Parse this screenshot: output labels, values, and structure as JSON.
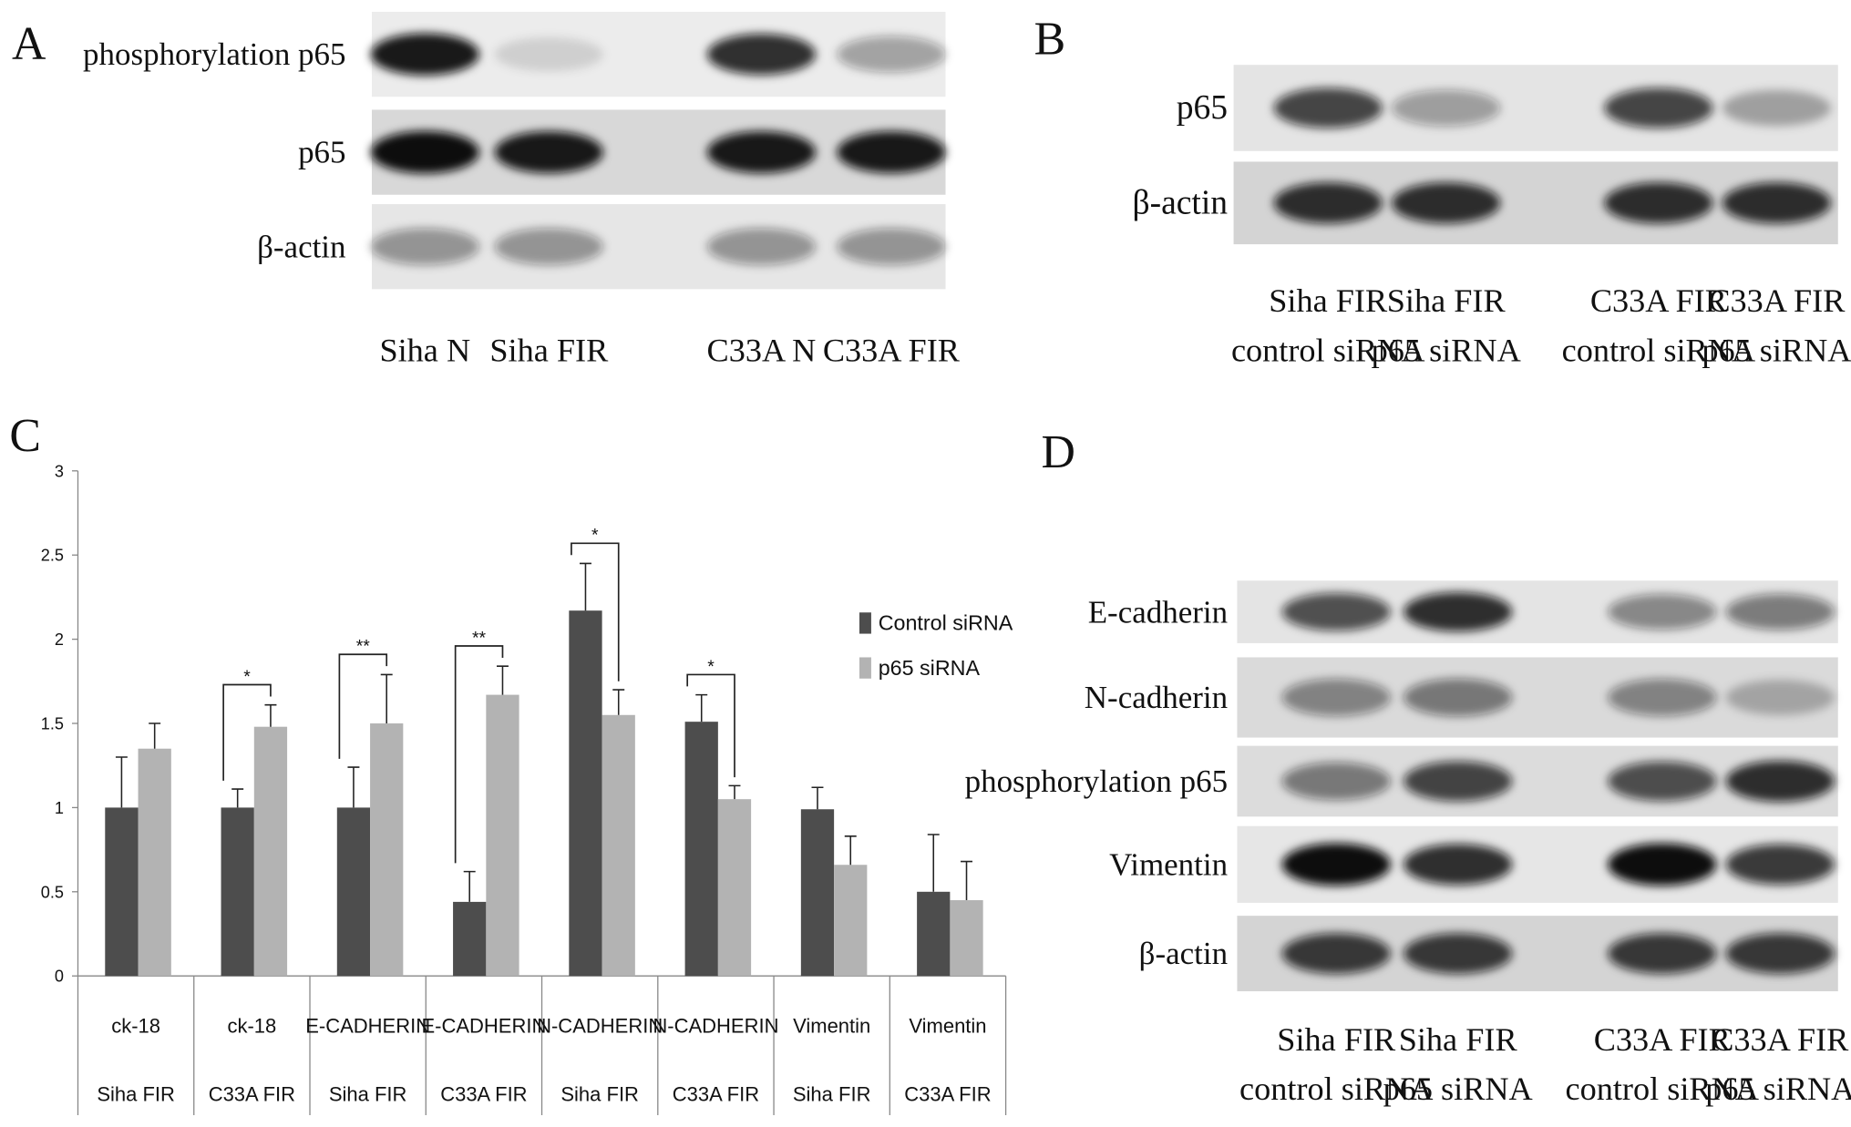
{
  "panels": {
    "A": {
      "label": "A",
      "rows": [
        "phosphorylation p65",
        "p65",
        "β-actin"
      ],
      "lanes": [
        "Siha N",
        "Siha FIR",
        "C33A N",
        "C33A FIR"
      ]
    },
    "B": {
      "label": "B",
      "rows": [
        "p65",
        "β-actin"
      ],
      "lanes": [
        [
          "Siha FIR",
          "control siRNA"
        ],
        [
          "Siha FIR",
          "p65 siRNA"
        ],
        [
          "C33A FIR",
          "control siRNA"
        ],
        [
          "C33A FIR",
          "p65 siRNA"
        ]
      ]
    },
    "D": {
      "label": "D",
      "rows": [
        "E-cadherin",
        "N-cadherin",
        "phosphorylation p65",
        "Vimentin",
        "β-actin"
      ],
      "lanes": [
        [
          "Siha FIR",
          "control siRNA"
        ],
        [
          "Siha FIR",
          "p65 siRNA"
        ],
        [
          "C33A FIR",
          "control siRNA"
        ],
        [
          "C33A FIR",
          "p65 siRNA"
        ]
      ]
    }
  },
  "chart_data": {
    "type": "bar",
    "label": "C",
    "categories": [
      "ck-18",
      "ck-18",
      "E-CADHERIN",
      "E-CADHERIN",
      "N-CADHERIN",
      "N-CADHERIN",
      "Vimentin",
      "Vimentin"
    ],
    "subcategories": [
      "Siha FIR",
      "C33A FIR",
      "Siha FIR",
      "C33A FIR",
      "Siha FIR",
      "C33A FIR",
      "Siha FIR",
      "C33A FIR"
    ],
    "series": [
      {
        "name": "Control siRNA",
        "color": "#4d4d4d",
        "values": [
          1.0,
          1.0,
          1.0,
          0.44,
          2.17,
          1.51,
          0.99,
          0.5
        ],
        "errors": [
          0.3,
          0.11,
          0.24,
          0.18,
          0.28,
          0.16,
          0.13,
          0.34
        ]
      },
      {
        "name": "p65 siRNA",
        "color": "#b3b3b3",
        "values": [
          1.35,
          1.48,
          1.5,
          1.67,
          1.55,
          1.05,
          0.66,
          0.45
        ],
        "errors": [
          0.15,
          0.13,
          0.29,
          0.17,
          0.15,
          0.08,
          0.17,
          0.23
        ]
      }
    ],
    "significance": [
      null,
      "*",
      "**",
      "**",
      "*",
      "*",
      null,
      null
    ],
    "ylim": [
      0,
      3
    ],
    "yticks": [
      0,
      0.5,
      1,
      1.5,
      2,
      2.5,
      3
    ]
  }
}
